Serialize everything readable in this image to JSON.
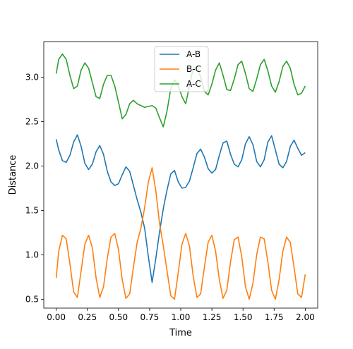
{
  "chart_data": {
    "type": "line",
    "title": "",
    "xlabel": "Time",
    "ylabel": "Distance",
    "xlim": [
      -0.1,
      2.1
    ],
    "ylim": [
      0.4,
      3.4
    ],
    "x_ticks": [
      0.0,
      0.25,
      0.5,
      0.75,
      1.0,
      1.25,
      1.5,
      1.75,
      2.0
    ],
    "x_tick_labels": [
      "0.00",
      "0.25",
      "0.50",
      "0.75",
      "1.00",
      "1.25",
      "1.50",
      "1.75",
      "2.00"
    ],
    "y_ticks": [
      0.5,
      1.0,
      1.5,
      2.0,
      2.5,
      3.0
    ],
    "y_tick_labels": [
      "0.5",
      "1.0",
      "1.5",
      "2.0",
      "2.5",
      "3.0"
    ],
    "grid": false,
    "legend_position": "top-center",
    "x": [
      0.0,
      0.02,
      0.05,
      0.08,
      0.11,
      0.14,
      0.17,
      0.2,
      0.23,
      0.26,
      0.29,
      0.32,
      0.35,
      0.38,
      0.41,
      0.44,
      0.47,
      0.5,
      0.53,
      0.56,
      0.59,
      0.62,
      0.65,
      0.68,
      0.71,
      0.74,
      0.77,
      0.8,
      0.83,
      0.86,
      0.89,
      0.92,
      0.95,
      0.98,
      1.01,
      1.04,
      1.07,
      1.1,
      1.13,
      1.16,
      1.19,
      1.22,
      1.25,
      1.28,
      1.31,
      1.34,
      1.37,
      1.4,
      1.43,
      1.46,
      1.49,
      1.52,
      1.55,
      1.58,
      1.61,
      1.64,
      1.67,
      1.7,
      1.73,
      1.76,
      1.79,
      1.82,
      1.85,
      1.88,
      1.91,
      1.94,
      1.97,
      2.0
    ],
    "series": [
      {
        "name": "A-B",
        "color": "#1f77b4",
        "values": [
          2.3,
          2.18,
          2.06,
          2.04,
          2.12,
          2.27,
          2.35,
          2.22,
          2.03,
          1.96,
          2.02,
          2.16,
          2.23,
          2.13,
          1.94,
          1.82,
          1.78,
          1.8,
          1.9,
          1.99,
          1.94,
          1.78,
          1.62,
          1.48,
          1.3,
          0.98,
          0.69,
          0.96,
          1.26,
          1.52,
          1.73,
          1.91,
          1.95,
          1.82,
          1.75,
          1.76,
          1.83,
          1.98,
          2.14,
          2.19,
          2.1,
          1.97,
          1.92,
          1.96,
          2.12,
          2.26,
          2.28,
          2.13,
          2.02,
          1.99,
          2.07,
          2.25,
          2.33,
          2.24,
          2.05,
          1.99,
          2.07,
          2.27,
          2.34,
          2.18,
          2.02,
          1.98,
          2.05,
          2.22,
          2.29,
          2.2,
          2.12,
          2.15
        ]
      },
      {
        "name": "B-C",
        "color": "#ff7f0e",
        "values": [
          0.74,
          1.04,
          1.22,
          1.18,
          0.9,
          0.58,
          0.52,
          0.82,
          1.12,
          1.22,
          1.08,
          0.74,
          0.52,
          0.64,
          0.96,
          1.2,
          1.24,
          1.06,
          0.72,
          0.51,
          0.56,
          0.86,
          1.14,
          1.3,
          1.53,
          1.82,
          1.98,
          1.72,
          1.35,
          1.1,
          0.82,
          0.54,
          0.5,
          0.8,
          1.12,
          1.24,
          1.1,
          0.76,
          0.52,
          0.56,
          0.86,
          1.14,
          1.22,
          1.04,
          0.72,
          0.51,
          0.6,
          0.92,
          1.17,
          1.2,
          0.98,
          0.64,
          0.5,
          0.68,
          1.0,
          1.2,
          1.18,
          0.92,
          0.6,
          0.5,
          0.72,
          1.04,
          1.2,
          1.14,
          0.86,
          0.56,
          0.52,
          0.78
        ]
      },
      {
        "name": "A-C",
        "color": "#2ca02c",
        "values": [
          3.04,
          3.2,
          3.26,
          3.2,
          3.02,
          2.87,
          2.9,
          3.08,
          3.16,
          3.1,
          2.94,
          2.78,
          2.76,
          2.92,
          3.02,
          3.02,
          2.9,
          2.72,
          2.53,
          2.58,
          2.7,
          2.74,
          2.7,
          2.68,
          2.66,
          2.67,
          2.68,
          2.65,
          2.54,
          2.44,
          2.62,
          2.87,
          2.97,
          2.9,
          2.78,
          2.7,
          2.9,
          3.1,
          3.12,
          3.0,
          2.84,
          2.8,
          2.92,
          3.08,
          3.16,
          3.02,
          2.86,
          2.85,
          2.98,
          3.14,
          3.18,
          3.04,
          2.87,
          2.84,
          2.98,
          3.14,
          3.2,
          3.07,
          2.9,
          2.83,
          2.95,
          3.12,
          3.18,
          3.1,
          2.92,
          2.8,
          2.82,
          2.9
        ]
      }
    ]
  }
}
